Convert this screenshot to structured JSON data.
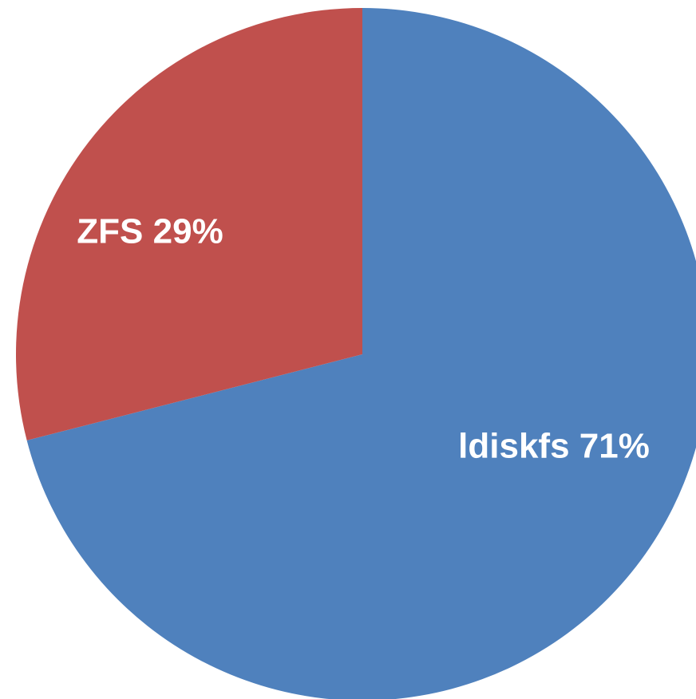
{
  "chart_data": {
    "type": "pie",
    "values": [
      71,
      29
    ],
    "value_labels": [
      "ldiskfs 71%",
      "ZFS 29%"
    ],
    "colors": [
      "#4f81bd",
      "#c0504d"
    ],
    "start_angle": 0,
    "direction": "clockwise"
  }
}
